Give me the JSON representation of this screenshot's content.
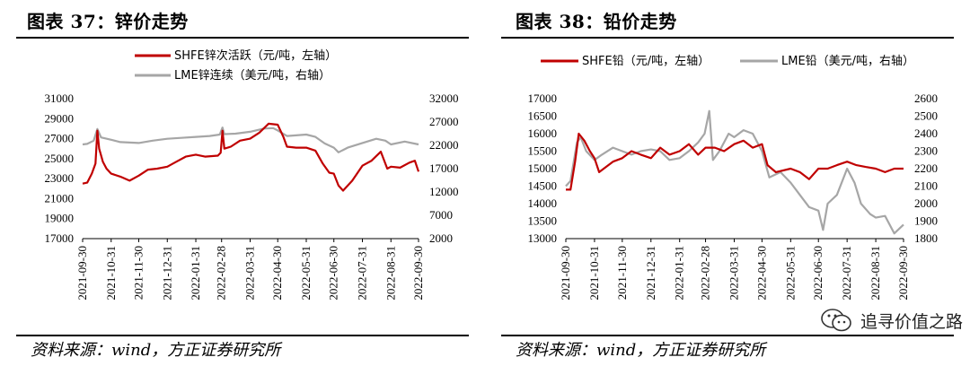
{
  "charts": {
    "left": {
      "title": "图表 37：锌价走势",
      "source": "资料来源：wind，方正证券研究所"
    },
    "right": {
      "title": "图表 38：铅价走势",
      "source": "资料来源：wind，方正证券研究所"
    }
  },
  "watermark": {
    "text": "追寻价值之路"
  },
  "chart_data": [
    {
      "type": "line",
      "x_ticks": [
        "2021-09-30",
        "2021-10-31",
        "2021-11-30",
        "2021-12-31",
        "2022-01-31",
        "2022-02-28",
        "2022-03-31",
        "2022-04-30",
        "2022-05-31",
        "2022-06-30",
        "2022-07-31",
        "2022-08-31",
        "2022-09-30"
      ],
      "x_range": [
        "2021-09-30",
        "2022-09-30"
      ],
      "y_left": {
        "range": [
          17000,
          31000
        ],
        "ticks": [
          17000,
          19000,
          21000,
          23000,
          25000,
          27000,
          29000,
          31000
        ]
      },
      "y_right": {
        "range": [
          2000,
          32000
        ],
        "ticks": [
          2000,
          7000,
          12000,
          17000,
          22000,
          27000,
          32000
        ]
      },
      "legend_position": "top-center",
      "series": [
        {
          "name": "SHFE锌次活跃（元/吨，左轴）",
          "axis": "left",
          "color": "#c00000",
          "points": [
            [
              "2021-09-30",
              22500
            ],
            [
              "2021-10-05",
              22600
            ],
            [
              "2021-10-10",
              23500
            ],
            [
              "2021-10-14",
              24500
            ],
            [
              "2021-10-16",
              27800
            ],
            [
              "2021-10-18",
              26000
            ],
            [
              "2021-10-22",
              24700
            ],
            [
              "2021-10-26",
              24000
            ],
            [
              "2021-10-31",
              23500
            ],
            [
              "2021-11-10",
              23200
            ],
            [
              "2021-11-20",
              22800
            ],
            [
              "2021-11-30",
              23300
            ],
            [
              "2021-12-10",
              23900
            ],
            [
              "2021-12-20",
              24000
            ],
            [
              "2021-12-31",
              24200
            ],
            [
              "2022-01-10",
              24700
            ],
            [
              "2022-01-20",
              25200
            ],
            [
              "2022-01-31",
              25400
            ],
            [
              "2022-02-10",
              25200
            ],
            [
              "2022-02-24",
              25300
            ],
            [
              "2022-02-27",
              25600
            ],
            [
              "2022-03-01",
              27800
            ],
            [
              "2022-03-03",
              26000
            ],
            [
              "2022-03-10",
              26200
            ],
            [
              "2022-03-20",
              26800
            ],
            [
              "2022-03-31",
              27000
            ],
            [
              "2022-04-10",
              27600
            ],
            [
              "2022-04-20",
              28500
            ],
            [
              "2022-04-30",
              28400
            ],
            [
              "2022-05-06",
              27200
            ],
            [
              "2022-05-10",
              26200
            ],
            [
              "2022-05-20",
              26100
            ],
            [
              "2022-05-31",
              26100
            ],
            [
              "2022-06-10",
              25800
            ],
            [
              "2022-06-18",
              24500
            ],
            [
              "2022-06-25",
              23600
            ],
            [
              "2022-06-30",
              23500
            ],
            [
              "2022-07-05",
              22300
            ],
            [
              "2022-07-10",
              21800
            ],
            [
              "2022-07-20",
              22800
            ],
            [
              "2022-07-31",
              24300
            ],
            [
              "2022-08-10",
              24800
            ],
            [
              "2022-08-20",
              25700
            ],
            [
              "2022-08-27",
              24000
            ],
            [
              "2022-08-31",
              24200
            ],
            [
              "2022-09-10",
              24100
            ],
            [
              "2022-09-20",
              24600
            ],
            [
              "2022-09-26",
              24800
            ],
            [
              "2022-09-30",
              23700
            ]
          ]
        },
        {
          "name": "LME锌连续（美元/吨，右轴）",
          "axis": "right",
          "color": "#a6a6a6",
          "points": [
            [
              "2021-09-30",
              22200
            ],
            [
              "2021-10-05",
              22300
            ],
            [
              "2021-10-12",
              23000
            ],
            [
              "2021-10-16",
              25500
            ],
            [
              "2021-10-20",
              23700
            ],
            [
              "2021-10-31",
              23200
            ],
            [
              "2021-11-10",
              22700
            ],
            [
              "2021-11-30",
              22500
            ],
            [
              "2021-12-15",
              23000
            ],
            [
              "2021-12-31",
              23400
            ],
            [
              "2022-01-15",
              23600
            ],
            [
              "2022-01-31",
              23800
            ],
            [
              "2022-02-15",
              24000
            ],
            [
              "2022-02-26",
              24300
            ],
            [
              "2022-03-01",
              25800
            ],
            [
              "2022-03-03",
              24400
            ],
            [
              "2022-03-15",
              24500
            ],
            [
              "2022-03-31",
              24900
            ],
            [
              "2022-04-15",
              25600
            ],
            [
              "2022-04-25",
              25700
            ],
            [
              "2022-04-30",
              25200
            ],
            [
              "2022-05-10",
              24000
            ],
            [
              "2022-05-31",
              24300
            ],
            [
              "2022-06-10",
              23800
            ],
            [
              "2022-06-20",
              22400
            ],
            [
              "2022-06-30",
              21500
            ],
            [
              "2022-07-05",
              20500
            ],
            [
              "2022-07-15",
              21500
            ],
            [
              "2022-07-31",
              22500
            ],
            [
              "2022-08-15",
              23400
            ],
            [
              "2022-08-25",
              23000
            ],
            [
              "2022-08-31",
              22200
            ],
            [
              "2022-09-15",
              22800
            ],
            [
              "2022-09-30",
              22200
            ]
          ]
        }
      ]
    },
    {
      "type": "line",
      "x_ticks": [
        "2021-09-30",
        "2021-10-31",
        "2021-11-30",
        "2021-12-31",
        "2022-01-31",
        "2022-02-28",
        "2022-03-31",
        "2022-04-30",
        "2022-05-31",
        "2022-06-30",
        "2022-07-31",
        "2022-08-31",
        "2022-09-30"
      ],
      "x_range": [
        "2021-09-30",
        "2022-09-30"
      ],
      "y_left": {
        "range": [
          13000,
          17000
        ],
        "ticks": [
          13000,
          13500,
          14000,
          14500,
          15000,
          15500,
          16000,
          16500,
          17000
        ]
      },
      "y_right": {
        "range": [
          1800,
          2600
        ],
        "ticks": [
          1800,
          1900,
          2000,
          2100,
          2200,
          2300,
          2400,
          2500,
          2600
        ]
      },
      "legend_position": "top-center",
      "series": [
        {
          "name": "SHFE铅（元/吨，左轴）",
          "axis": "left",
          "color": "#c00000",
          "points": [
            [
              "2021-09-30",
              14400
            ],
            [
              "2021-10-05",
              14400
            ],
            [
              "2021-10-10",
              15200
            ],
            [
              "2021-10-14",
              16000
            ],
            [
              "2021-10-20",
              15800
            ],
            [
              "2021-10-26",
              15500
            ],
            [
              "2021-10-31",
              15300
            ],
            [
              "2021-11-05",
              14900
            ],
            [
              "2021-11-10",
              15000
            ],
            [
              "2021-11-20",
              15200
            ],
            [
              "2021-11-30",
              15300
            ],
            [
              "2021-12-10",
              15500
            ],
            [
              "2021-12-20",
              15400
            ],
            [
              "2021-12-31",
              15300
            ],
            [
              "2022-01-10",
              15600
            ],
            [
              "2022-01-20",
              15400
            ],
            [
              "2022-01-31",
              15500
            ],
            [
              "2022-02-10",
              15700
            ],
            [
              "2022-02-20",
              15400
            ],
            [
              "2022-02-28",
              15600
            ],
            [
              "2022-03-10",
              15600
            ],
            [
              "2022-03-20",
              15500
            ],
            [
              "2022-03-31",
              15700
            ],
            [
              "2022-04-10",
              15800
            ],
            [
              "2022-04-20",
              15600
            ],
            [
              "2022-04-30",
              15700
            ],
            [
              "2022-05-06",
              15100
            ],
            [
              "2022-05-15",
              14900
            ],
            [
              "2022-05-31",
              15000
            ],
            [
              "2022-06-10",
              14900
            ],
            [
              "2022-06-20",
              14700
            ],
            [
              "2022-06-30",
              15000
            ],
            [
              "2022-07-10",
              15000
            ],
            [
              "2022-07-20",
              15100
            ],
            [
              "2022-07-31",
              15200
            ],
            [
              "2022-08-10",
              15100
            ],
            [
              "2022-08-20",
              15050
            ],
            [
              "2022-08-31",
              15000
            ],
            [
              "2022-09-10",
              14900
            ],
            [
              "2022-09-20",
              15000
            ],
            [
              "2022-09-30",
              15000
            ]
          ]
        },
        {
          "name": "LME铅（美元/吨，右轴）",
          "axis": "right",
          "color": "#a6a6a6",
          "points": [
            [
              "2021-09-30",
              2100
            ],
            [
              "2021-10-05",
              2130
            ],
            [
              "2021-10-12",
              2350
            ],
            [
              "2021-10-16",
              2380
            ],
            [
              "2021-10-22",
              2300
            ],
            [
              "2021-10-31",
              2250
            ],
            [
              "2021-11-08",
              2280
            ],
            [
              "2021-11-20",
              2320
            ],
            [
              "2021-11-30",
              2300
            ],
            [
              "2021-12-10",
              2280
            ],
            [
              "2021-12-20",
              2300
            ],
            [
              "2021-12-31",
              2310
            ],
            [
              "2022-01-10",
              2300
            ],
            [
              "2022-01-20",
              2250
            ],
            [
              "2022-01-31",
              2260
            ],
            [
              "2022-02-10",
              2300
            ],
            [
              "2022-02-20",
              2350
            ],
            [
              "2022-02-27",
              2400
            ],
            [
              "2022-03-04",
              2530
            ],
            [
              "2022-03-08",
              2250
            ],
            [
              "2022-03-15",
              2300
            ],
            [
              "2022-03-25",
              2400
            ],
            [
              "2022-03-31",
              2380
            ],
            [
              "2022-04-10",
              2420
            ],
            [
              "2022-04-20",
              2400
            ],
            [
              "2022-04-30",
              2300
            ],
            [
              "2022-05-08",
              2150
            ],
            [
              "2022-05-20",
              2180
            ],
            [
              "2022-05-31",
              2120
            ],
            [
              "2022-06-10",
              2050
            ],
            [
              "2022-06-20",
              1980
            ],
            [
              "2022-06-30",
              1960
            ],
            [
              "2022-07-05",
              1850
            ],
            [
              "2022-07-10",
              2000
            ],
            [
              "2022-07-20",
              2050
            ],
            [
              "2022-07-31",
              2200
            ],
            [
              "2022-08-08",
              2120
            ],
            [
              "2022-08-15",
              2000
            ],
            [
              "2022-08-25",
              1940
            ],
            [
              "2022-08-31",
              1920
            ],
            [
              "2022-09-10",
              1930
            ],
            [
              "2022-09-20",
              1830
            ],
            [
              "2022-09-30",
              1880
            ]
          ]
        }
      ]
    }
  ]
}
